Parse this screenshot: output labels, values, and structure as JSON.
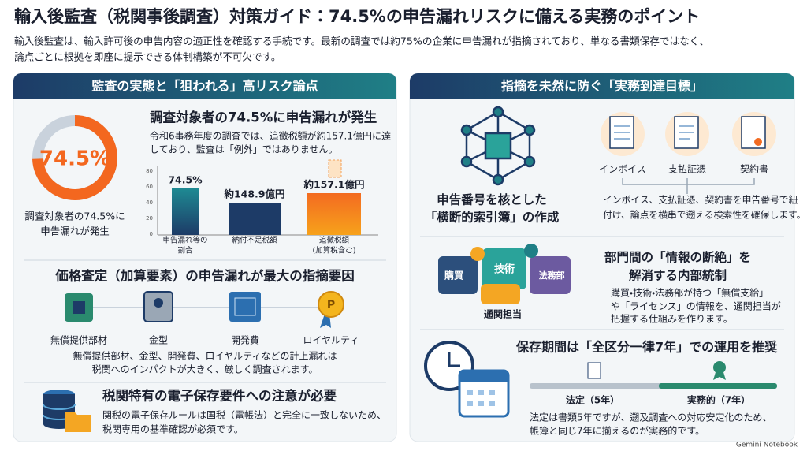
{
  "header": {
    "title": "輸入後監査（税関事後調査）対策ガイド：74.5%の申告漏れリスクに備える実務のポイント",
    "intro": [
      "輸入後監査は、輸入許可後の申告内容の適正性を確認する手続です。最新の調査では約75%の企業に申告漏れが指摘されており、単なる書類保存ではなく、",
      "論点ごとに根拠を即座に提示できる体制構築が不可欠です。"
    ]
  },
  "left_panel": {
    "heading": "監査の実態と「狙われる」高リスク論点",
    "survey": {
      "donut": {
        "value": 74.5,
        "label": "74.5%"
      },
      "caption": [
        "調査対象者の74.5%に",
        "申告漏れが発生"
      ],
      "heading": "調査対象者の74.5%に申告漏れが発生",
      "description": [
        "令和6事務年度の調査では、追徴税額が約157.1億円に達",
        "しており、監査は「例外」ではありません。"
      ],
      "chart": {
        "yticks": [
          80,
          60,
          40,
          20,
          0
        ],
        "bars": [
          {
            "label": "74.5%",
            "category": [
              "申告漏れ等の",
              "割合"
            ]
          },
          {
            "label": "約148.9億円",
            "category": [
              "納付不足税額"
            ]
          },
          {
            "label": "約157.1億円",
            "category": [
              "追徴税額",
              "(加算税含む)"
            ]
          }
        ]
      }
    },
    "valuation": {
      "heading": "価格査定（加算要素）の申告漏れが最大の指摘要因",
      "items": [
        "無償提供部材",
        "金型",
        "開発費",
        "ロイヤルティ"
      ],
      "description": [
        "無償提供部材、金型、開発費、ロイヤルティなどの計上漏れは",
        "税関へのインパクトが大きく、厳しく調査されます。"
      ]
    },
    "electronic": {
      "heading": "税関特有の電子保存要件への注意が必要",
      "description": [
        "関税の電子保存ルールは国税（電帳法）と完全に一致しないため、",
        "税関専用の基準確認が必須です。"
      ]
    }
  },
  "right_panel": {
    "heading": "指摘を未然に防ぐ「実務到達目標」",
    "index": {
      "heading": [
        "申告番号を核とした",
        "「横断的索引簿」の作成"
      ],
      "documents": [
        "インボイス",
        "支払証憑",
        "契約書"
      ],
      "description": [
        "インボイス、支払証憑、契約書を申告番号で紐",
        "付け、論点を横串で遡える検索性を確保します。"
      ]
    },
    "internal": {
      "heading": [
        "部門間の「情報の断絶」を",
        "解消する内部統制"
      ],
      "departments": [
        "購買",
        "技術",
        "法務部",
        "通関担当"
      ],
      "description": [
        "購買・技術・法務部が持つ「無償支給」",
        "や「ライセンス」の情報を、通関担当が",
        "把握する仕組みを作ります。"
      ]
    },
    "retention": {
      "heading": "保存期間は「全区分一律7年」での運用を推奨",
      "timeline": [
        "法定（5年）",
        "実務的（7年）"
      ],
      "description": [
        "法定は書類5年ですが、遡及調査への対応安定化のため、",
        "帳簿と同じ7年に揃えるのが実務的です。"
      ]
    }
  },
  "footer": "Gemini Notebook"
}
